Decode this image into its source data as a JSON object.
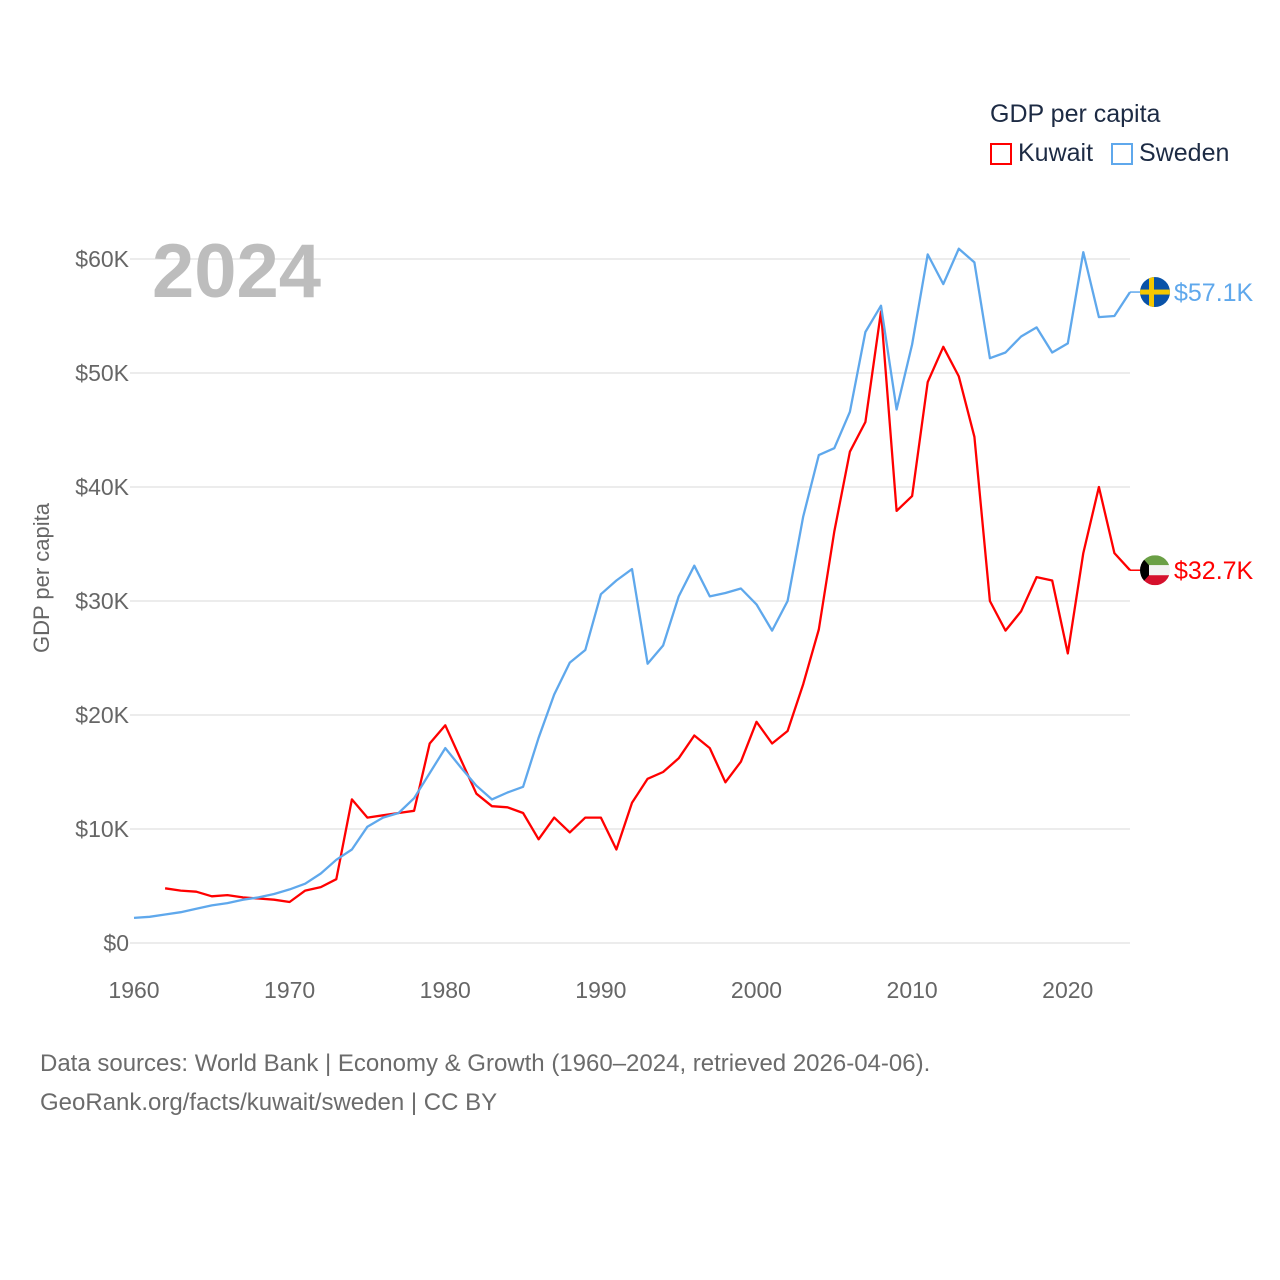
{
  "chart_data": {
    "type": "line",
    "title": "GDP per capita",
    "year_label": "2024",
    "xlabel": "",
    "ylabel": "GDP per capita",
    "xlim": [
      1960,
      2024
    ],
    "ylim": [
      0,
      60000
    ],
    "x_ticks": [
      1960,
      1970,
      1980,
      1990,
      2000,
      2010,
      2020
    ],
    "y_ticks": [
      0,
      10000,
      20000,
      30000,
      40000,
      50000,
      60000
    ],
    "y_tick_labels": [
      "$0",
      "$10K",
      "$20K",
      "$30K",
      "$40K",
      "$50K",
      "$60K"
    ],
    "grid": true,
    "legend_position": "top-right",
    "series": [
      {
        "name": "Kuwait",
        "color": "#ff0000",
        "end_label": "$32.7K",
        "flag": "kuwait-flag",
        "start_year": 1962,
        "values": [
          4.8,
          4.6,
          4.5,
          4.1,
          4.2,
          4.0,
          3.9,
          3.8,
          3.6,
          4.6,
          4.9,
          5.6,
          12.6,
          11.0,
          11.2,
          11.4,
          11.6,
          17.5,
          19.1,
          16.1,
          13.1,
          12.0,
          11.9,
          11.4,
          9.1,
          11.0,
          9.7,
          11.0,
          11.0,
          8.2,
          12.3,
          14.4,
          15.0,
          16.2,
          18.2,
          17.1,
          14.1,
          15.9,
          19.4,
          17.5,
          18.6,
          22.7,
          27.5,
          36.1,
          43.1,
          45.7,
          55.4,
          37.9,
          39.2,
          49.2,
          52.3,
          49.7,
          44.4,
          30.0,
          27.4,
          29.1,
          32.1,
          31.8,
          25.4,
          34.2,
          40.0,
          34.2,
          32.7
        ]
      },
      {
        "name": "Sweden",
        "color": "#5fa8ec",
        "end_label": "$57.1K",
        "flag": "sweden-flag",
        "start_year": 1960,
        "values": [
          2.2,
          2.3,
          2.5,
          2.7,
          3.0,
          3.3,
          3.5,
          3.8,
          4.0,
          4.3,
          4.7,
          5.2,
          6.1,
          7.3,
          8.2,
          10.2,
          11.0,
          11.4,
          12.7,
          14.9,
          17.1,
          15.4,
          13.8,
          12.6,
          13.2,
          13.7,
          18.0,
          21.8,
          24.6,
          25.7,
          30.6,
          31.8,
          32.8,
          24.5,
          26.1,
          30.4,
          33.1,
          30.4,
          30.7,
          31.1,
          29.7,
          27.4,
          30.0,
          37.4,
          42.8,
          43.4,
          46.6,
          53.6,
          55.9,
          46.8,
          52.5,
          60.4,
          57.8,
          60.9,
          59.7,
          51.3,
          51.8,
          53.2,
          54.0,
          51.8,
          52.6,
          60.6,
          54.9,
          55.0,
          57.1
        ]
      }
    ],
    "values_unit": "thousand USD"
  },
  "legend": {
    "title": "GDP per capita",
    "items": [
      "Kuwait",
      "Sweden"
    ]
  },
  "footer": {
    "line1": "Data sources: World Bank | Economy & Growth (1960–2024, retrieved 2026-04-06).",
    "line2": "GeoRank.org/facts/kuwait/sweden | CC BY"
  }
}
